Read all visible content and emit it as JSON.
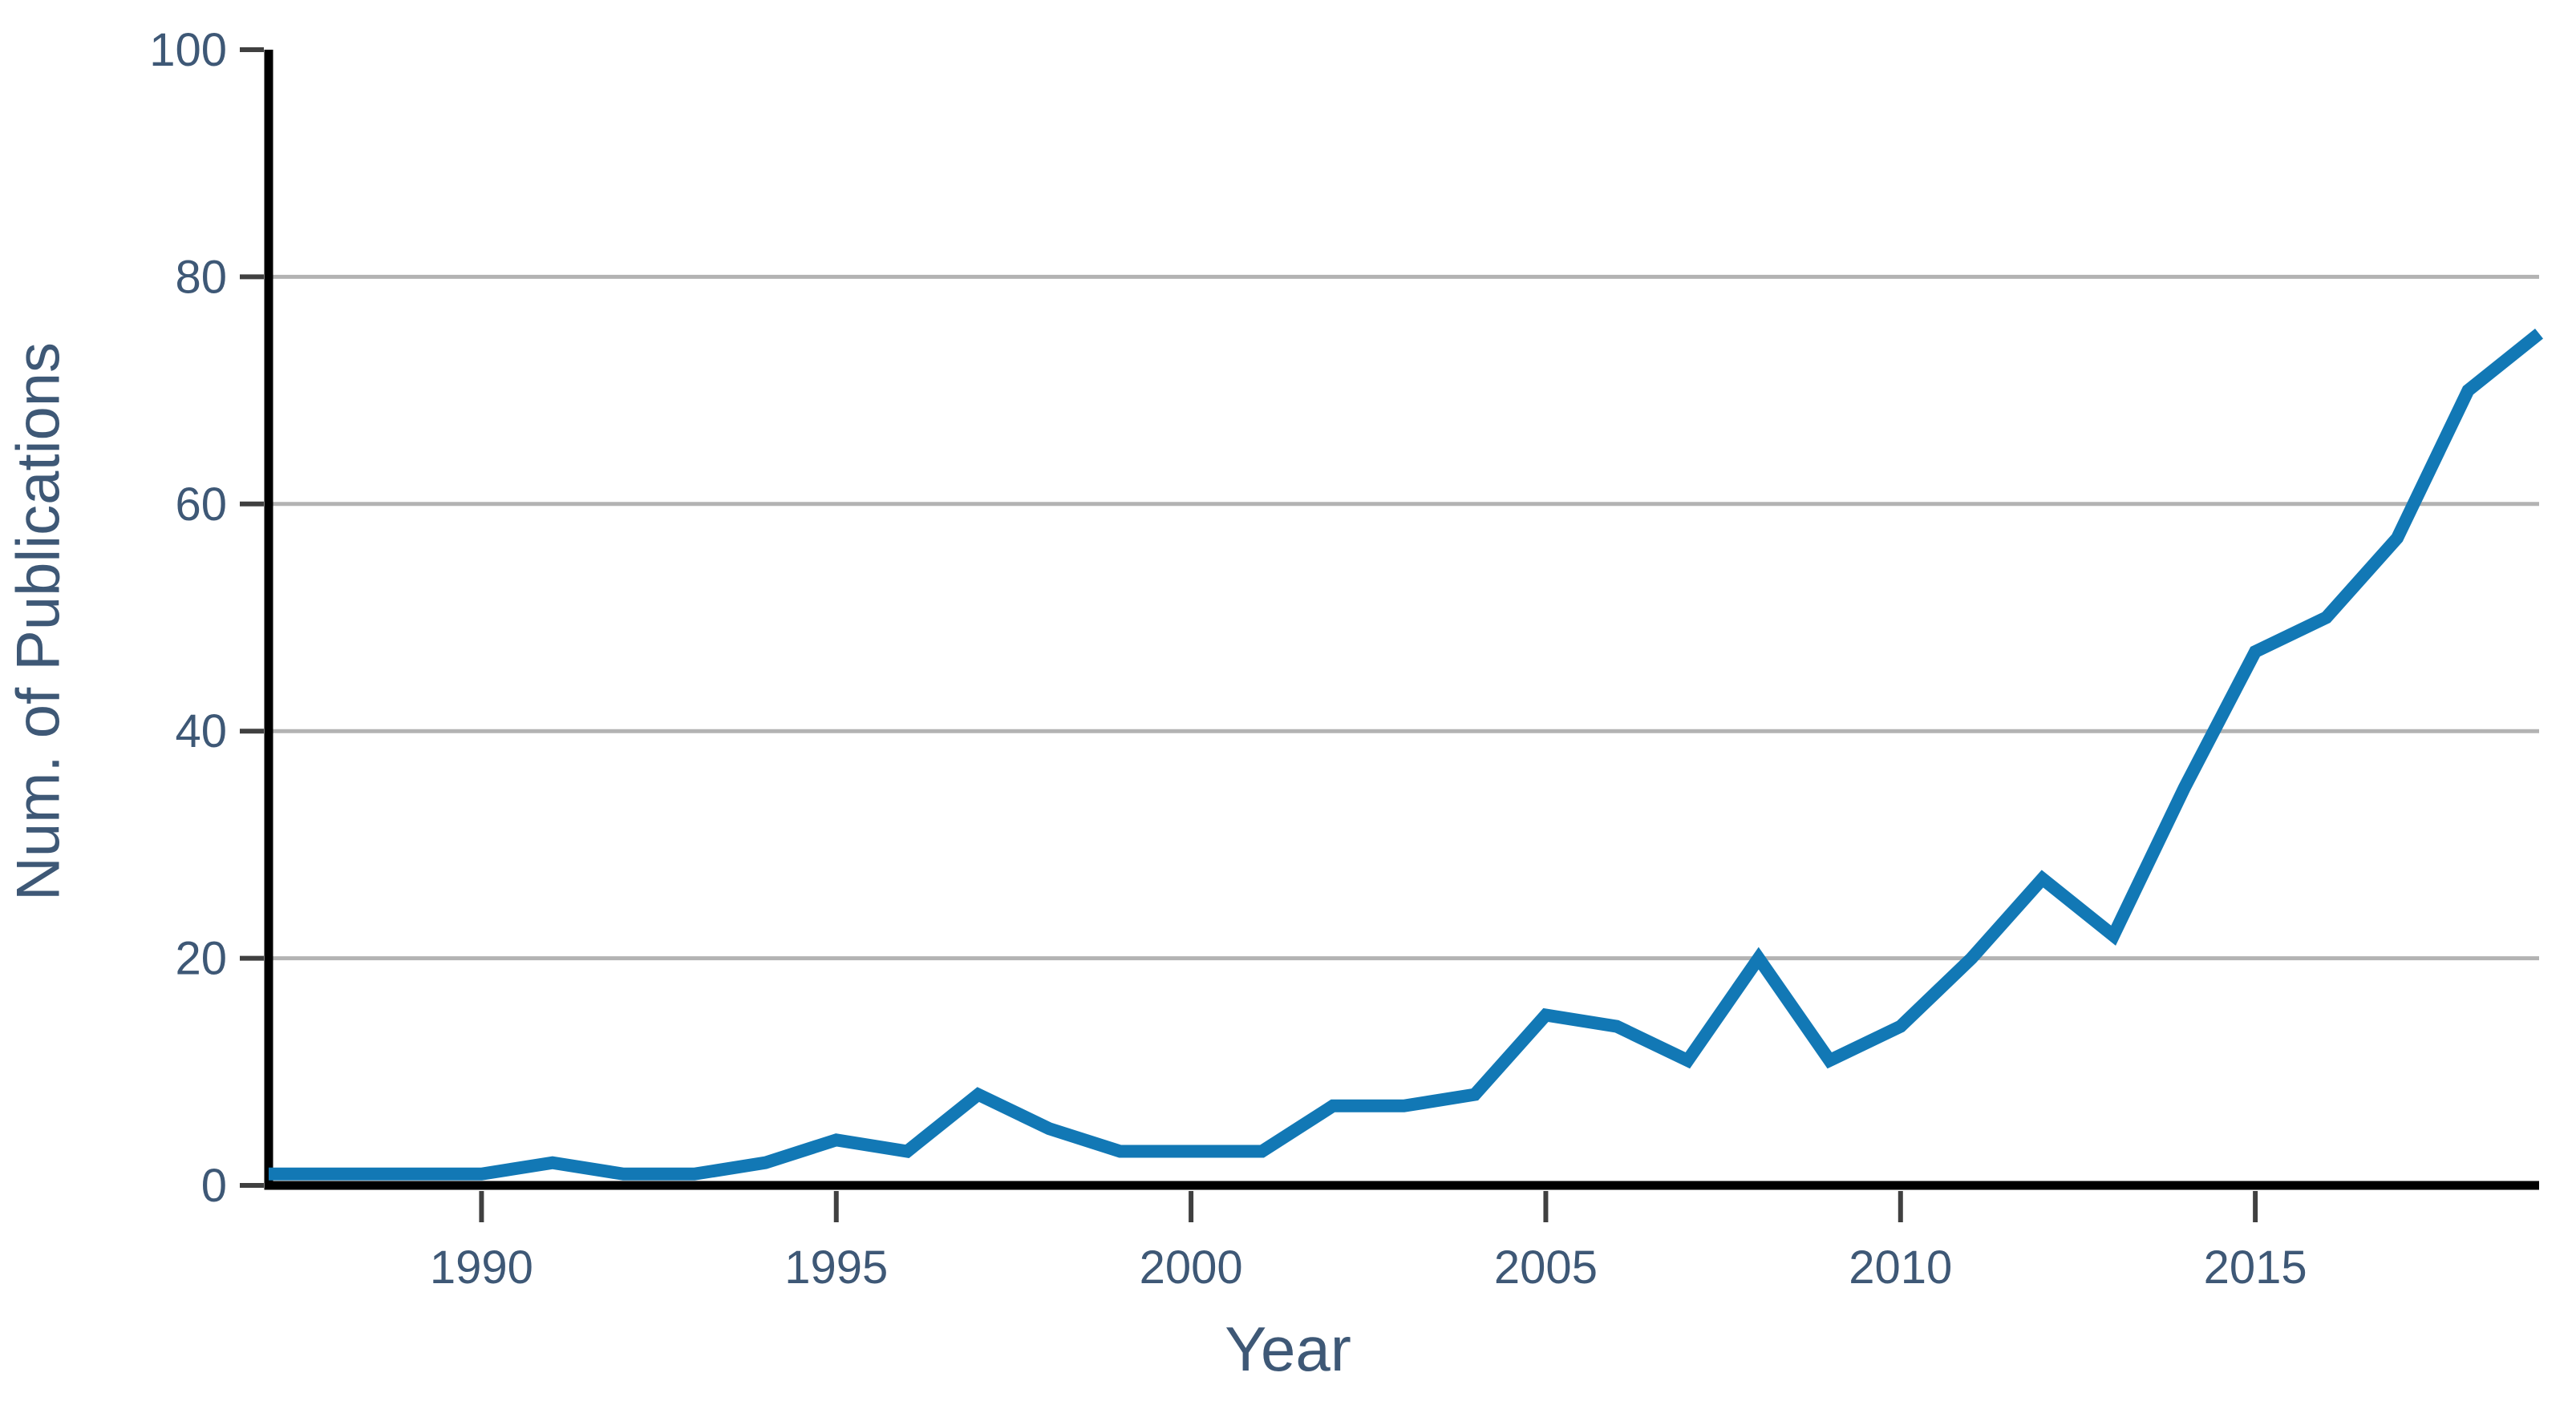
{
  "chart_data": {
    "type": "line",
    "title": "",
    "xlabel": "Year",
    "ylabel": "Num. of Publications",
    "x": [
      1987,
      1988,
      1989,
      1990,
      1991,
      1992,
      1993,
      1994,
      1995,
      1996,
      1997,
      1998,
      1999,
      2000,
      2001,
      2002,
      2003,
      2004,
      2005,
      2006,
      2007,
      2008,
      2009,
      2010,
      2011,
      2012,
      2013,
      2014,
      2015,
      2016,
      2017,
      2018,
      2019
    ],
    "values": [
      1,
      1,
      1,
      1,
      2,
      1,
      1,
      2,
      4,
      3,
      8,
      5,
      3,
      3,
      3,
      7,
      7,
      8,
      15,
      14,
      11,
      20,
      11,
      14,
      20,
      27,
      22,
      35,
      47,
      50,
      57,
      70,
      75
    ],
    "xlim": [
      1987,
      2019
    ],
    "ylim": [
      0,
      100
    ],
    "x_ticks": [
      1990,
      1995,
      2000,
      2005,
      2010,
      2015
    ],
    "y_ticks": [
      0,
      20,
      40,
      60,
      80,
      100
    ],
    "gridline_yticks": [
      20,
      40,
      60,
      80
    ],
    "grid": "horizontal",
    "legend_position": "none",
    "colors": {
      "line": "#1278b5",
      "labels": "#3e5876",
      "tick_marks": "#404040",
      "gridlines": "#b3b3b3",
      "axis": "#000000"
    }
  }
}
